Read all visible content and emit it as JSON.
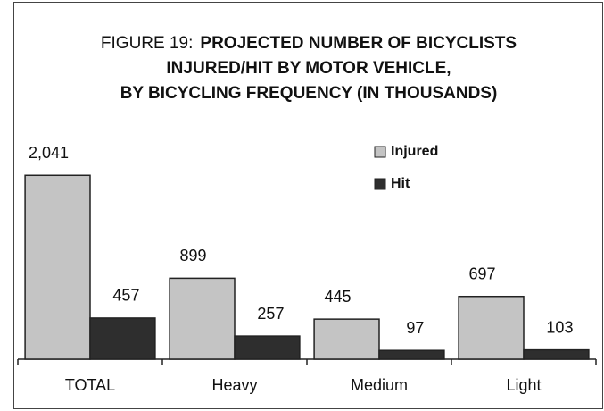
{
  "chart_data": {
    "type": "bar",
    "figure_label": "FIGURE 19:",
    "title": [
      "PROJECTED NUMBER OF BICYCLISTS",
      "INJURED/HIT BY MOTOR VEHICLE,",
      "BY BICYCLING FREQUENCY (IN THOUSANDS)"
    ],
    "categories": [
      "TOTAL",
      "Heavy",
      "Medium",
      "Light"
    ],
    "series": [
      {
        "name": "Injured",
        "color": "#c4c4c4",
        "values": [
          2041,
          899,
          445,
          697
        ],
        "value_labels": [
          "2,041",
          "899",
          "445",
          "697"
        ]
      },
      {
        "name": "Hit",
        "color": "#2e2e2e",
        "values": [
          457,
          257,
          97,
          103
        ],
        "value_labels": [
          "457",
          "257",
          "97",
          "103"
        ]
      }
    ],
    "ylim": [
      0,
      2500
    ],
    "legend": "top-right"
  }
}
